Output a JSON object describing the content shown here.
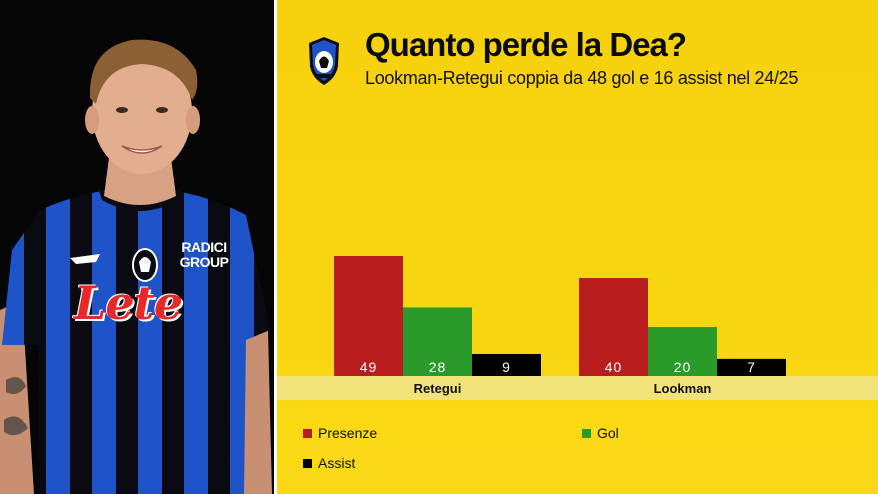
{
  "title": "Quanto perde la Dea?",
  "subtitle": "Lookman-Retegui coppia da 48 gol e 16 assist nel 24/25",
  "jersey": {
    "sponsor": "Lete",
    "patch": "RADICI GROUP"
  },
  "colors": {
    "background": "#f8d410",
    "presenze": "#b81e1e",
    "gol": "#2a9a2a",
    "assist": "#000000",
    "category_band": "#f2e27a"
  },
  "chart_data": {
    "type": "bar",
    "title": "Quanto perde la Dea?",
    "subtitle": "Lookman-Retegui coppia da 48 gol e 16 assist nel 24/25",
    "categories": [
      "Retegui",
      "Lookman"
    ],
    "series": [
      {
        "name": "Presenze",
        "color": "#b81e1e",
        "values": [
          49,
          40
        ]
      },
      {
        "name": "Gol",
        "color": "#2a9a2a",
        "values": [
          28,
          20
        ]
      },
      {
        "name": "Assist",
        "color": "#000000",
        "values": [
          9,
          7
        ]
      }
    ],
    "ylim": [
      0,
      49
    ],
    "grid": false,
    "legend": "bottom"
  }
}
